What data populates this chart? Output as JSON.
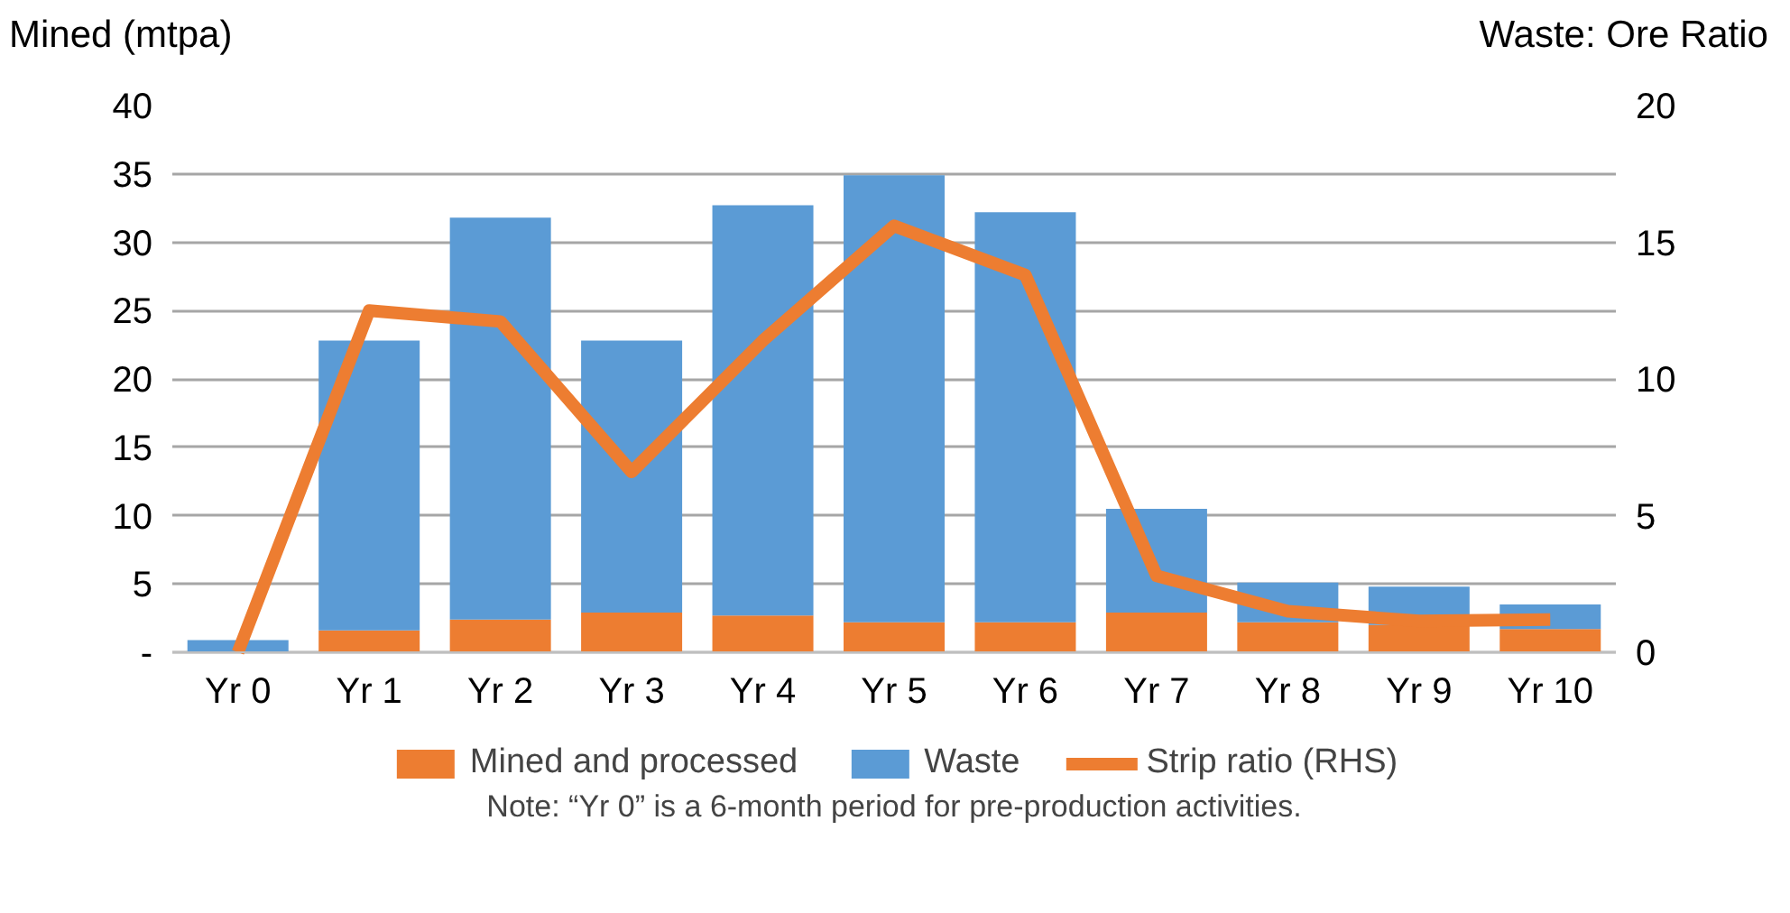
{
  "chart_data": {
    "type": "bar",
    "stacked": true,
    "ylabel": "Mined (mtpa)",
    "y2label": "Waste: Ore Ratio",
    "categories": [
      "Yr 0",
      "Yr 1",
      "Yr 2",
      "Yr 3",
      "Yr 4",
      "Yr 5",
      "Yr 6",
      "Yr 7",
      "Yr 8",
      "Yr 9",
      "Yr 10"
    ],
    "series": [
      {
        "name": "Mined and processed",
        "color": "#ed7d31",
        "values": [
          0,
          1.6,
          2.4,
          2.9,
          2.7,
          2.2,
          2.2,
          2.9,
          2.2,
          2.0,
          1.7
        ]
      },
      {
        "name": "Waste",
        "color": "#5b9bd5",
        "values": [
          0.9,
          21.2,
          29.4,
          19.9,
          30.0,
          32.7,
          30.0,
          7.6,
          2.9,
          2.8,
          1.8
        ]
      },
      {
        "name": "Strip ratio (RHS)",
        "type": "line",
        "axis": "y2",
        "color": "#ed7d31",
        "values": [
          0,
          12.5,
          12.1,
          6.6,
          11.4,
          15.6,
          13.8,
          2.8,
          1.5,
          1.15,
          1.2
        ]
      }
    ],
    "ylim": [
      0,
      40
    ],
    "yticks": [
      {
        "value": 0,
        "label": "-"
      },
      5,
      10,
      15,
      20,
      25,
      30,
      35,
      40
    ],
    "y2lim": [
      0,
      20
    ],
    "y2ticks": [
      0,
      5,
      10,
      15,
      20
    ],
    "grid": "y",
    "legend": "bottom",
    "annotations": [
      "Note: “Yr 0” is a 6-month period for pre-production activities."
    ]
  }
}
